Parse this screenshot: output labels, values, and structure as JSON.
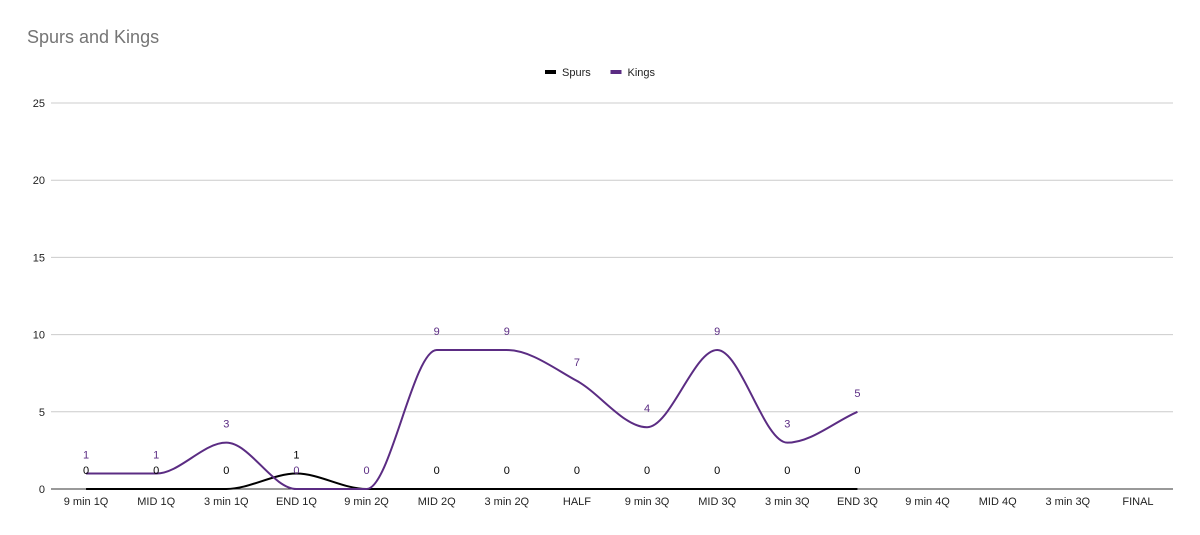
{
  "title": "Spurs and Kings",
  "chart_data": {
    "type": "line",
    "title": "Spurs and Kings",
    "xlabel": "",
    "ylabel": "",
    "categories": [
      "9 min 1Q",
      "MID 1Q",
      "3 min 1Q",
      "END 1Q",
      "9 min 2Q",
      "MID 2Q",
      "3 min 2Q",
      "HALF",
      "9 min 3Q",
      "MID 3Q",
      "3 min 3Q",
      "END 3Q",
      "9 min 4Q",
      "MID 4Q",
      "3 min 3Q",
      "FINAL"
    ],
    "ylim": [
      0,
      25
    ],
    "yticks": [
      0,
      5,
      10,
      15,
      20,
      25
    ],
    "grid": true,
    "legend_position": "top",
    "series": [
      {
        "name": "Spurs",
        "color": "#000000",
        "values": [
          0,
          0,
          0,
          1,
          0,
          0,
          0,
          0,
          0,
          0,
          0,
          0,
          null,
          null,
          null,
          null
        ]
      },
      {
        "name": "Kings",
        "color": "#5b2c83",
        "values": [
          1,
          1,
          3,
          0,
          0,
          9,
          9,
          7,
          4,
          9,
          3,
          5,
          null,
          null,
          null,
          null
        ]
      }
    ]
  }
}
